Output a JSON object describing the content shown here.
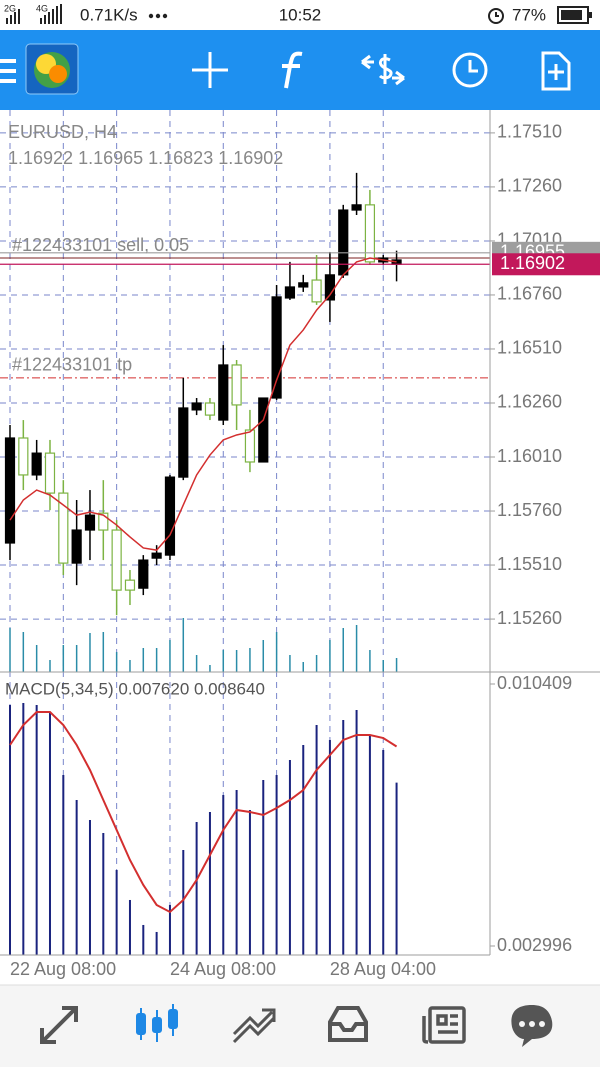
{
  "status_bar": {
    "network": "2G",
    "network2": "4G",
    "speed": "0.71K/s",
    "time": "10:52",
    "battery": "77%"
  },
  "chart_data": [
    {
      "type": "candlestick",
      "title": "EURUSD, H4",
      "subtitle": "1.16922 1.16965 1.16823 1.16902",
      "categories": [
        "22 Aug 08:00",
        null,
        null,
        null,
        null,
        null,
        null,
        null,
        null,
        null,
        null,
        null,
        "24 Aug 08:00",
        null,
        null,
        null,
        null,
        null,
        null,
        null,
        null,
        null,
        null,
        null,
        "28 Aug 04:00",
        null,
        null,
        null,
        null,
        null
      ],
      "open": [
        1.16098,
        1.15927,
        1.16028,
        1.15843,
        1.15519,
        1.15672,
        1.15741,
        1.15672,
        1.15394,
        1.15394,
        1.15533,
        1.15565,
        1.15917,
        1.16237,
        1.1626,
        1.16204,
        1.16436,
        1.16251,
        1.15987,
        1.16283,
        1.16751,
        1.16797,
        1.16816,
        1.16728,
        1.16853,
        1.17153,
        1.17177,
        1.16913,
        1.16931,
        1.16922
      ],
      "high": [
        1.16158,
        1.16181,
        1.16089,
        1.16089,
        1.15903,
        1.15811,
        1.15857,
        1.15903,
        1.15718,
        1.15487,
        1.15556,
        1.15602,
        1.15927,
        1.16376,
        1.16283,
        1.16283,
        1.16528,
        1.16459,
        1.16228,
        1.16283,
        1.16806,
        1.16913,
        1.16853,
        1.16945,
        1.16959,
        1.17177,
        1.17325,
        1.17246,
        1.16945,
        1.16965
      ],
      "low": [
        1.15533,
        1.15857,
        1.15903,
        1.15764,
        1.15464,
        1.15417,
        1.15533,
        1.15533,
        1.15278,
        1.15325,
        1.15371,
        1.1551,
        1.15533,
        1.15903,
        1.16204,
        1.16181,
        1.16158,
        1.16135,
        1.1594,
        1.15987,
        1.16274,
        1.16737,
        1.16774,
        1.16714,
        1.16635,
        1.16839,
        1.1713,
        1.16899,
        1.16899,
        1.16823
      ],
      "close": [
        1.15612,
        1.16098,
        1.15927,
        1.16028,
        1.15843,
        1.15519,
        1.15672,
        1.1575,
        1.15672,
        1.1544,
        1.15403,
        1.15542,
        1.15556,
        1.15917,
        1.16228,
        1.1626,
        1.16181,
        1.16436,
        1.16135,
        1.15987,
        1.16283,
        1.16746,
        1.16797,
        1.16829,
        1.16737,
        1.16853,
        1.17153,
        1.17177,
        1.16913,
        1.16902
      ],
      "up_color": "#7cb342",
      "down_color": "#000000",
      "ma": {
        "color": "#d32f2f",
        "values": [
          1.15718,
          1.15811,
          1.15857,
          1.15834,
          1.15788,
          1.15741,
          1.15755,
          1.15741,
          1.15695,
          1.1564,
          1.15589,
          1.15579,
          1.15649,
          1.15788,
          1.15927,
          1.16019,
          1.16089,
          1.16112,
          1.16126,
          1.16181,
          1.16366,
          1.16528,
          1.16598,
          1.1669,
          1.1676,
          1.16853,
          1.16913,
          1.16931,
          1.16922,
          1.16913
        ]
      },
      "volume": {
        "color": "#2a8ca8",
        "values": [
          44,
          40,
          27,
          12,
          27,
          27,
          39,
          40,
          20,
          12,
          24,
          24,
          32,
          54,
          17,
          7,
          22,
          22,
          24,
          32,
          40,
          17,
          10,
          17,
          32,
          44,
          47,
          22,
          12,
          14
        ]
      },
      "ylim": [
        1.15015,
        1.17616
      ],
      "yticks": [
        {
          "value": 1.1751,
          "label": "1.17510"
        },
        {
          "value": 1.1726,
          "label": "1.17260"
        },
        {
          "value": 1.1701,
          "label": "1.17010"
        },
        {
          "value": 1.1676,
          "label": "1.16760"
        },
        {
          "value": 1.1651,
          "label": "1.16510"
        },
        {
          "value": 1.1626,
          "label": "1.16260"
        },
        {
          "value": 1.1601,
          "label": "1.16010"
        },
        {
          "value": 1.1576,
          "label": "1.15760"
        },
        {
          "value": 1.1551,
          "label": "1.15510"
        },
        {
          "value": 1.1526,
          "label": "1.15260"
        }
      ],
      "grid": true,
      "hlines": [
        {
          "label": "#122433101 sell, 0.05",
          "value": 1.16931,
          "color": "#7b1f1f",
          "style": "solid"
        },
        {
          "label": "#122433101 tp",
          "value": 1.16376,
          "color": "#d32f2f",
          "style": "dashdot"
        }
      ],
      "price_labels": [
        {
          "value": 1.16955,
          "color": "#9e9e9e"
        },
        {
          "value": 1.16902,
          "color": "#c2185b"
        }
      ]
    },
    {
      "type": "macd",
      "title": "MACD(5,34,5) 0.007620 0.008640",
      "color": "#1a237e",
      "values": [
        0.009815,
        0.009871,
        0.009815,
        0.009617,
        0.007835,
        0.007127,
        0.006561,
        0.006194,
        0.005147,
        0.004298,
        0.003591,
        0.003393,
        0.004157,
        0.005713,
        0.006505,
        0.006788,
        0.007269,
        0.00741,
        0.006844,
        0.007693,
        0.007835,
        0.008259,
        0.008683,
        0.009249,
        0.008825,
        0.009391,
        0.009673,
        0.008966,
        0.008542,
        0.00762
      ],
      "signal": {
        "color": "#d32f2f",
        "values": [
          0.008683,
          0.009249,
          0.009617,
          0.009617,
          0.009249,
          0.008683,
          0.007976,
          0.007127,
          0.006279,
          0.00543,
          0.004723,
          0.004157,
          0.003959,
          0.004298,
          0.004864,
          0.005571,
          0.006279,
          0.006844,
          0.006788,
          0.006703,
          0.006901,
          0.007127,
          0.00741,
          0.007976,
          0.0084,
          0.008825,
          0.008966,
          0.008966,
          0.008881,
          0.00864
        ]
      },
      "ylim": [
        0.002996,
        0.010409
      ],
      "yticks": [
        0.010409,
        0.002996
      ]
    }
  ]
}
